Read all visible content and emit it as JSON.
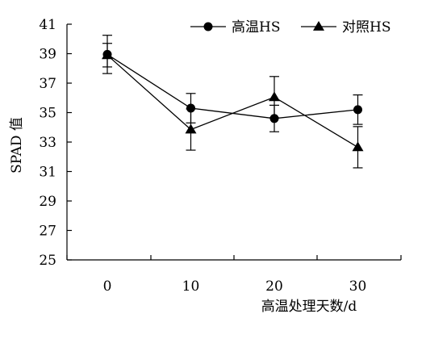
{
  "chart_data": {
    "type": "line",
    "x": [
      0,
      10,
      20,
      30
    ],
    "x_tick_labels": [
      "0",
      "10",
      "20",
      "30"
    ],
    "xlabel": "高温处理天数/d",
    "ylabel": "SPAD 值",
    "ylim": [
      25,
      41
    ],
    "y_ticks": [
      25,
      27,
      29,
      31,
      33,
      35,
      37,
      39,
      41
    ],
    "grid": false,
    "legend_position": "top-right",
    "series": [
      {
        "name": "高温HS",
        "marker": "circle",
        "color": "#000000",
        "values": [
          38.95,
          35.3,
          34.6,
          35.2
        ],
        "error": [
          1.3,
          1.0,
          0.9,
          1.0
        ]
      },
      {
        "name": "对照HS",
        "marker": "triangle",
        "color": "#000000",
        "values": [
          38.9,
          33.85,
          36.05,
          32.65
        ],
        "error": [
          0.8,
          1.4,
          1.4,
          1.4
        ]
      }
    ]
  }
}
